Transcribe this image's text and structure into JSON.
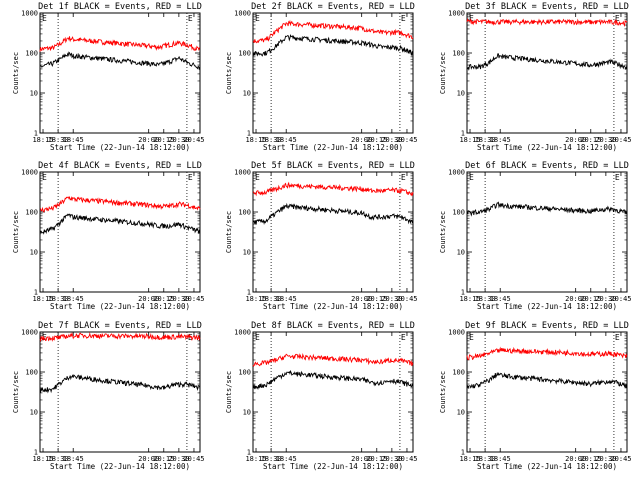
{
  "chart_data": {
    "type": "line",
    "y_scale": "log",
    "ylim": [
      1,
      1000
    ],
    "y_ticks": [
      1,
      10,
      100,
      1000
    ],
    "y_tick_labels": [
      "1",
      "10",
      "100",
      "1000"
    ],
    "xlim": [
      "18:12",
      "20:51"
    ],
    "x_ticks": [
      "18:15",
      "18:30",
      "18:45",
      "20:00",
      "20:15",
      "20:30",
      "20:45"
    ],
    "x_tick_labels": [
      "18:15",
      "18:30",
      "18:45",
      "20:00",
      "20:15",
      "20:30",
      "20:45"
    ],
    "xlabel": "Start Time (22-Jun-14 18:12:00)",
    "ylabel": "Counts/sec",
    "vertical_markers": [
      {
        "time": "18:30",
        "label": ""
      },
      {
        "time": "20:38",
        "label": "E"
      }
    ],
    "corner_label": "E",
    "colors": {
      "events": "#000000",
      "lld": "#ff0000"
    },
    "grid": false,
    "panels": [
      {
        "title": "Det  1f BLACK = Events, RED = LLD",
        "series": [
          {
            "name": "RED = LLD",
            "color": "#ff0000",
            "x": [
              "18:12",
              "18:25",
              "18:32",
              "18:40",
              "18:45",
              "20:00",
              "20:10",
              "20:20",
              "20:30",
              "20:40",
              "20:51"
            ],
            "y": [
              125,
              135,
              170,
              240,
              220,
              150,
              140,
              160,
              180,
              155,
              120
            ]
          },
          {
            "name": "BLACK = Events",
            "color": "#000000",
            "x": [
              "18:12",
              "18:25",
              "18:32",
              "18:40",
              "18:45",
              "20:00",
              "20:10",
              "20:20",
              "20:30",
              "20:40",
              "20:51"
            ],
            "y": [
              45,
              55,
              70,
              95,
              85,
              55,
              50,
              60,
              75,
              55,
              45
            ]
          }
        ]
      },
      {
        "title": "Det  2f BLACK = Events, RED = LLD",
        "series": [
          {
            "name": "RED = LLD",
            "color": "#ff0000",
            "x": [
              "18:12",
              "18:25",
              "18:35",
              "18:45",
              "20:00",
              "20:10",
              "20:20",
              "20:30",
              "20:40",
              "20:51"
            ],
            "y": [
              200,
              210,
              350,
              550,
              420,
              360,
              320,
              330,
              320,
              250
            ]
          },
          {
            "name": "BLACK = Events",
            "color": "#000000",
            "x": [
              "18:12",
              "18:25",
              "18:35",
              "18:45",
              "20:00",
              "20:10",
              "20:20",
              "20:30",
              "20:40",
              "20:51"
            ],
            "y": [
              95,
              100,
              150,
              250,
              180,
              160,
              140,
              140,
              130,
              100
            ]
          }
        ]
      },
      {
        "title": "Det  3f BLACK = Events, RED = LLD",
        "series": [
          {
            "name": "RED = LLD",
            "color": "#ff0000",
            "x": [
              "18:12",
              "18:30",
              "18:45",
              "20:00",
              "20:15",
              "20:30",
              "20:45",
              "20:51"
            ],
            "y": [
              620,
              600,
              600,
              600,
              590,
              600,
              570,
              560
            ]
          },
          {
            "name": "BLACK = Events",
            "color": "#000000",
            "x": [
              "18:12",
              "18:25",
              "18:35",
              "18:42",
              "18:48",
              "20:00",
              "20:15",
              "20:25",
              "20:35",
              "20:45",
              "20:51"
            ],
            "y": [
              45,
              45,
              60,
              85,
              80,
              55,
              50,
              55,
              60,
              50,
              45
            ]
          }
        ]
      },
      {
        "title": "Det  4f BLACK = Events, RED = LLD",
        "series": [
          {
            "name": "RED = LLD",
            "color": "#ff0000",
            "x": [
              "18:12",
              "18:25",
              "18:32",
              "18:40",
              "18:45",
              "20:00",
              "20:10",
              "20:20",
              "20:30",
              "20:40",
              "20:51"
            ],
            "y": [
              110,
              125,
              160,
              230,
              210,
              150,
              140,
              140,
              160,
              145,
              120
            ]
          },
          {
            "name": "BLACK = Events",
            "color": "#000000",
            "x": [
              "18:12",
              "18:25",
              "18:32",
              "18:40",
              "18:45",
              "20:00",
              "20:10",
              "20:20",
              "20:30",
              "20:40",
              "20:51"
            ],
            "y": [
              30,
              38,
              55,
              85,
              75,
              50,
              45,
              45,
              50,
              40,
              32
            ]
          }
        ]
      },
      {
        "title": "Det  5f BLACK = Events, RED = LLD",
        "series": [
          {
            "name": "RED = LLD",
            "color": "#ff0000",
            "x": [
              "18:12",
              "18:25",
              "18:35",
              "18:45",
              "20:00",
              "20:10",
              "20:20",
              "20:30",
              "20:40",
              "20:51"
            ],
            "y": [
              300,
              310,
              380,
              470,
              380,
              340,
              340,
              350,
              340,
              280
            ]
          },
          {
            "name": "BLACK = Events",
            "color": "#000000",
            "x": [
              "18:12",
              "18:25",
              "18:35",
              "18:45",
              "20:00",
              "20:10",
              "20:20",
              "20:30",
              "20:40",
              "20:51"
            ],
            "y": [
              55,
              60,
              95,
              140,
              95,
              75,
              75,
              80,
              75,
              55
            ]
          }
        ]
      },
      {
        "title": "Det  6f BLACK = Events, RED = LLD",
        "series": [
          {
            "name": "BLACK = Events",
            "color": "#000000",
            "x": [
              "18:12",
              "18:25",
              "18:35",
              "18:42",
              "18:48",
              "20:00",
              "20:15",
              "20:25",
              "20:35",
              "20:45",
              "20:51"
            ],
            "y": [
              95,
              100,
              120,
              155,
              145,
              110,
              105,
              115,
              120,
              105,
              95
            ]
          }
        ]
      },
      {
        "title": "Det  7f BLACK = Events, RED = LLD",
        "series": [
          {
            "name": "RED = LLD",
            "color": "#ff0000",
            "x": [
              "18:12",
              "18:30",
              "18:40",
              "18:50",
              "20:00",
              "20:15",
              "20:30",
              "20:45",
              "20:51"
            ],
            "y": [
              700,
              720,
              800,
              820,
              780,
              740,
              760,
              740,
              720
            ]
          },
          {
            "name": "BLACK = Events",
            "color": "#000000",
            "x": [
              "18:12",
              "18:25",
              "18:35",
              "18:42",
              "18:48",
              "20:00",
              "20:15",
              "20:25",
              "20:35",
              "20:45",
              "20:51"
            ],
            "y": [
              35,
              38,
              60,
              80,
              75,
              45,
              40,
              48,
              50,
              45,
              40
            ]
          }
        ]
      },
      {
        "title": "Det  8f BLACK = Events, RED = LLD",
        "series": [
          {
            "name": "RED = LLD",
            "color": "#ff0000",
            "x": [
              "18:12",
              "18:25",
              "18:35",
              "18:45",
              "20:00",
              "20:10",
              "20:20",
              "20:30",
              "20:40",
              "20:51"
            ],
            "y": [
              160,
              170,
              200,
              250,
              200,
              180,
              180,
              200,
              190,
              160
            ]
          },
          {
            "name": "BLACK = Events",
            "color": "#000000",
            "x": [
              "18:12",
              "18:25",
              "18:35",
              "18:45",
              "20:00",
              "20:10",
              "20:20",
              "20:30",
              "20:40",
              "20:51"
            ],
            "y": [
              42,
              48,
              70,
              95,
              65,
              55,
              55,
              62,
              55,
              45
            ]
          }
        ]
      },
      {
        "title": "Det  9f BLACK = Events, RED = LLD",
        "series": [
          {
            "name": "RED = LLD",
            "color": "#ff0000",
            "x": [
              "18:12",
              "18:25",
              "18:35",
              "18:45",
              "20:00",
              "20:10",
              "20:20",
              "20:30",
              "20:40",
              "20:51"
            ],
            "y": [
              230,
              250,
              300,
              350,
              300,
              280,
              280,
              290,
              280,
              240
            ]
          },
          {
            "name": "BLACK = Events",
            "color": "#000000",
            "x": [
              "18:12",
              "18:25",
              "18:35",
              "18:42",
              "18:48",
              "20:00",
              "20:15",
              "20:25",
              "20:35",
              "20:45",
              "20:51"
            ],
            "y": [
              42,
              48,
              65,
              90,
              80,
              55,
              50,
              55,
              60,
              50,
              42
            ]
          }
        ]
      }
    ]
  }
}
